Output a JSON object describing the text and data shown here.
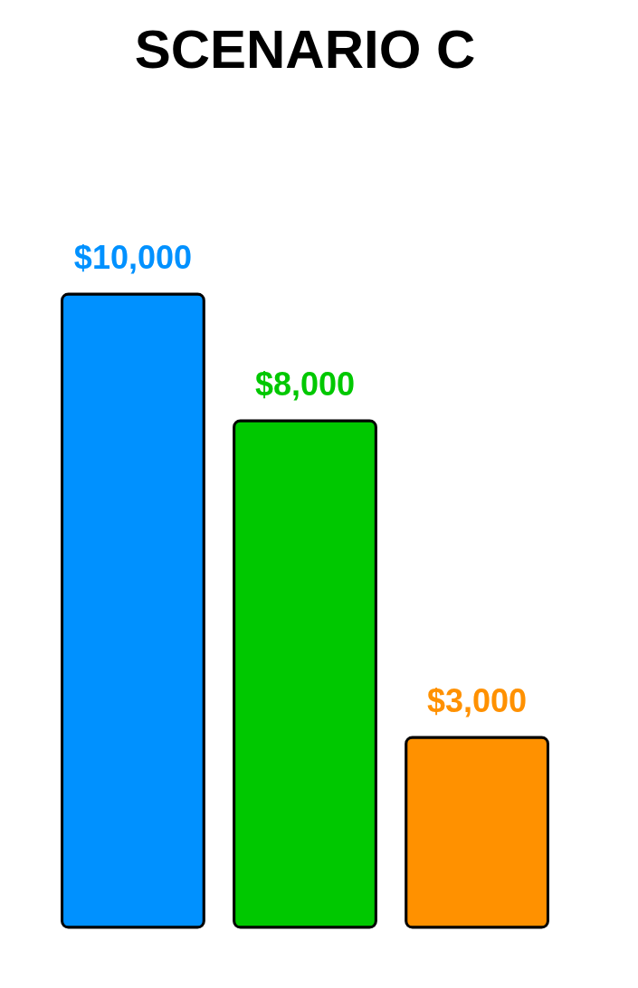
{
  "chart_data": {
    "type": "bar",
    "title": "SCENARIO C",
    "categories": [
      null,
      null,
      null
    ],
    "values": [
      10000,
      8000,
      3000
    ],
    "colors": [
      "#0091ff",
      "#00c800",
      "#ff9100"
    ],
    "value_labels": [
      "$10,000",
      "$8,000",
      "$3,000"
    ],
    "grid": false
  }
}
